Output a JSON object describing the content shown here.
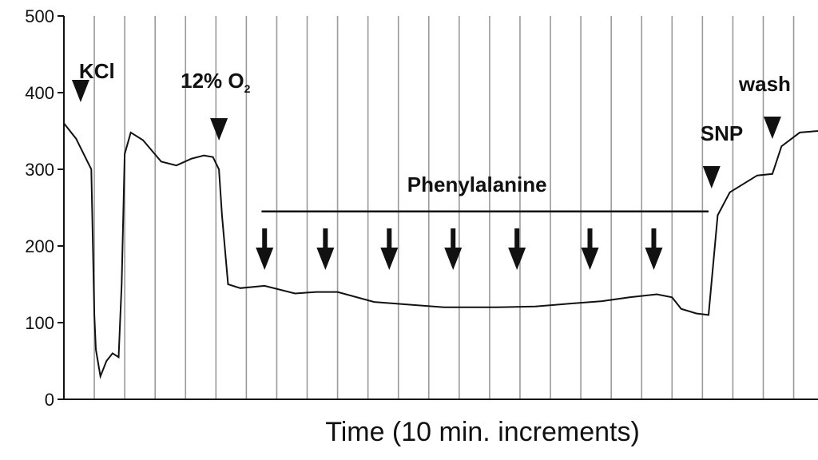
{
  "chart_data": {
    "type": "line",
    "title": "",
    "xlabel": "Time (10 min. increments)",
    "ylabel": "",
    "ylim": [
      0,
      500
    ],
    "xlim": [
      0,
      24.8
    ],
    "yticks": [
      0,
      100,
      200,
      300,
      400,
      500
    ],
    "grid": "vertical lines at each 10-minute increment",
    "series": [
      {
        "values_x": [
          0,
          0.4,
          0.9,
          1.0,
          1.05,
          1.2,
          1.4,
          1.6,
          1.8,
          1.9,
          2.0,
          2.2,
          2.6,
          3.2,
          3.7,
          4.2,
          4.6,
          4.9,
          5.1,
          5.2,
          5.4,
          5.8,
          6.6,
          7.6,
          8.3,
          9.0,
          10.2,
          11.2,
          12.5,
          14.2,
          15.5,
          16.7,
          17.7,
          18.6,
          19.5,
          20.0,
          20.3,
          20.8,
          21.2,
          21.5,
          21.9,
          22.8,
          23.3,
          23.6,
          24.2,
          24.8
        ],
        "values_y": [
          360,
          340,
          300,
          110,
          65,
          30,
          50,
          60,
          55,
          150,
          320,
          348,
          338,
          310,
          305,
          314,
          318,
          316,
          300,
          240,
          150,
          145,
          148,
          138,
          140,
          140,
          127,
          124,
          120,
          120,
          121,
          125,
          128,
          133,
          137,
          133,
          118,
          112,
          110,
          240,
          270,
          292,
          294,
          330,
          348,
          350
        ]
      }
    ],
    "annotations": [
      {
        "label": "KCl",
        "x": 0.55
      },
      {
        "label": "12% O",
        "subscript": "2",
        "x": 5.1
      },
      {
        "label": "SNP",
        "x": 21.3
      },
      {
        "label": "wash",
        "x": 23.3
      }
    ],
    "bracket": {
      "label": "Phenylalanine",
      "x_start": 6.5,
      "x_end": 21.2,
      "y": 245
    },
    "phenylalanine_arrows_x": [
      6.6,
      8.6,
      10.7,
      12.8,
      14.9,
      17.3,
      19.4
    ]
  }
}
